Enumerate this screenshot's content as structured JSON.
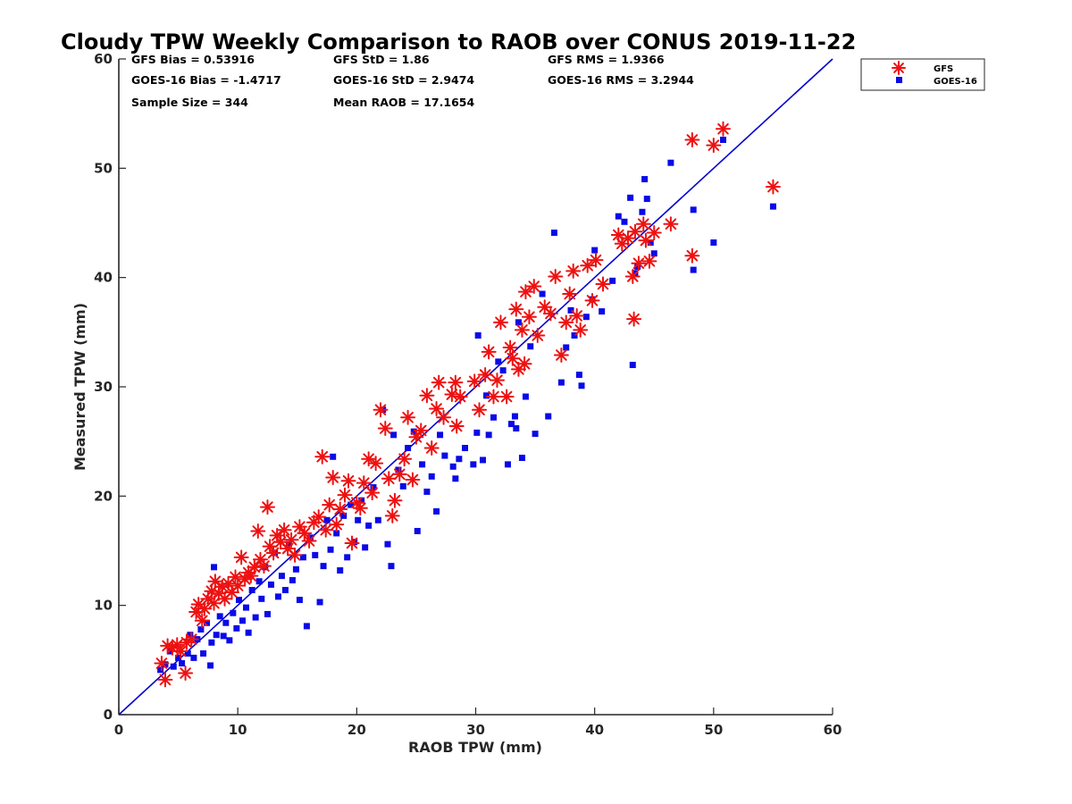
{
  "chart_data": {
    "type": "scatter",
    "title": "Cloudy TPW Weekly Comparison to RAOB over CONUS 2019-11-22",
    "xlabel": "RAOB TPW (mm)",
    "ylabel": "Measured TPW (mm)",
    "xlim": [
      0,
      60
    ],
    "ylim": [
      0,
      60
    ],
    "xticks": [
      "0",
      "10",
      "20",
      "30",
      "40",
      "50",
      "60"
    ],
    "yticks": [
      "0",
      "10",
      "20",
      "30",
      "40",
      "50",
      "60"
    ],
    "grid": false,
    "legend_position": "top-right (outside axes)",
    "reference_line": {
      "type": "one-to-one",
      "color": "#0000d0"
    },
    "stats": [
      "GFS Bias = 0.53916",
      "GFS StD = 1.86",
      "GFS RMS = 1.9366",
      "GOES-16 Bias = -1.4717",
      "GOES-16 StD = 2.9474",
      "GOES-16 RMS = 3.2944",
      "Sample Size = 344",
      "Mean RAOB = 17.1654"
    ],
    "series": [
      {
        "name": "GFS",
        "marker": "asterisk",
        "color": "#ee1111",
        "points": [
          [
            3.6,
            4.7
          ],
          [
            3.9,
            3.2
          ],
          [
            4.1,
            6.3
          ],
          [
            4.5,
            6.1
          ],
          [
            4.9,
            6.4
          ],
          [
            5.2,
            5.8
          ],
          [
            5.6,
            3.8
          ],
          [
            5.7,
            6.6
          ],
          [
            6.1,
            6.9
          ],
          [
            6.5,
            9.4
          ],
          [
            6.7,
            10.1
          ],
          [
            7.0,
            8.6
          ],
          [
            7.2,
            9.7
          ],
          [
            7.5,
            10.6
          ],
          [
            7.8,
            11.3
          ],
          [
            8.0,
            10.2
          ],
          [
            8.1,
            12.2
          ],
          [
            8.4,
            11.1
          ],
          [
            8.7,
            11.7
          ],
          [
            8.9,
            10.6
          ],
          [
            9.2,
            12.0
          ],
          [
            9.5,
            11.2
          ],
          [
            9.8,
            12.6
          ],
          [
            10.0,
            11.8
          ],
          [
            10.3,
            14.4
          ],
          [
            10.6,
            12.4
          ],
          [
            10.9,
            13.0
          ],
          [
            11.1,
            12.7
          ],
          [
            11.4,
            13.5
          ],
          [
            11.7,
            16.8
          ],
          [
            11.9,
            14.2
          ],
          [
            12.2,
            13.6
          ],
          [
            12.5,
            19.0
          ],
          [
            12.7,
            15.4
          ],
          [
            13.0,
            14.8
          ],
          [
            13.3,
            16.4
          ],
          [
            13.6,
            15.8
          ],
          [
            13.9,
            16.9
          ],
          [
            14.2,
            15.2
          ],
          [
            14.5,
            16.0
          ],
          [
            14.8,
            14.6
          ],
          [
            15.2,
            17.2
          ],
          [
            15.6,
            16.6
          ],
          [
            16.0,
            15.9
          ],
          [
            16.4,
            17.6
          ],
          [
            16.8,
            18.1
          ],
          [
            17.1,
            23.6
          ],
          [
            17.4,
            16.9
          ],
          [
            17.7,
            19.2
          ],
          [
            18.0,
            21.7
          ],
          [
            18.3,
            17.4
          ],
          [
            18.6,
            18.8
          ],
          [
            19.0,
            20.1
          ],
          [
            19.3,
            21.4
          ],
          [
            19.6,
            15.7
          ],
          [
            20.0,
            19.4
          ],
          [
            20.3,
            18.9
          ],
          [
            20.6,
            21.2
          ],
          [
            21.0,
            23.4
          ],
          [
            21.3,
            20.3
          ],
          [
            21.6,
            23.0
          ],
          [
            22.0,
            27.9
          ],
          [
            22.4,
            26.2
          ],
          [
            22.7,
            21.6
          ],
          [
            23.0,
            18.2
          ],
          [
            23.2,
            19.6
          ],
          [
            23.6,
            22.0
          ],
          [
            24.0,
            23.4
          ],
          [
            24.3,
            27.2
          ],
          [
            24.7,
            21.5
          ],
          [
            25.0,
            25.4
          ],
          [
            25.4,
            26.0
          ],
          [
            25.9,
            29.2
          ],
          [
            26.3,
            24.4
          ],
          [
            26.7,
            28.0
          ],
          [
            26.9,
            30.4
          ],
          [
            27.3,
            27.2
          ],
          [
            28.0,
            29.3
          ],
          [
            28.3,
            30.4
          ],
          [
            28.4,
            26.4
          ],
          [
            28.7,
            29.1
          ],
          [
            29.9,
            30.5
          ],
          [
            30.3,
            27.9
          ],
          [
            30.8,
            31.1
          ],
          [
            31.1,
            33.2
          ],
          [
            31.5,
            29.1
          ],
          [
            31.8,
            30.6
          ],
          [
            32.1,
            35.9
          ],
          [
            32.6,
            29.1
          ],
          [
            32.9,
            33.6
          ],
          [
            33.1,
            32.6
          ],
          [
            33.4,
            37.1
          ],
          [
            33.6,
            31.6
          ],
          [
            33.9,
            35.2
          ],
          [
            34.1,
            32.1
          ],
          [
            34.2,
            38.7
          ],
          [
            34.5,
            36.4
          ],
          [
            34.9,
            39.2
          ],
          [
            35.2,
            34.7
          ],
          [
            35.8,
            37.3
          ],
          [
            36.3,
            36.7
          ],
          [
            36.7,
            40.1
          ],
          [
            37.2,
            32.9
          ],
          [
            37.6,
            35.9
          ],
          [
            37.9,
            38.5
          ],
          [
            38.2,
            40.6
          ],
          [
            38.5,
            36.5
          ],
          [
            38.8,
            35.2
          ],
          [
            39.4,
            41.1
          ],
          [
            39.8,
            37.9
          ],
          [
            40.1,
            41.6
          ],
          [
            40.7,
            39.4
          ],
          [
            42.0,
            43.9
          ],
          [
            42.3,
            43.1
          ],
          [
            42.8,
            43.6
          ],
          [
            43.2,
            40.1
          ],
          [
            43.3,
            36.2
          ],
          [
            43.4,
            44.2
          ],
          [
            43.7,
            41.3
          ],
          [
            44.1,
            44.9
          ],
          [
            44.3,
            43.4
          ],
          [
            44.6,
            41.5
          ],
          [
            45.0,
            44.1
          ],
          [
            46.4,
            44.9
          ],
          [
            48.2,
            42.0
          ],
          [
            48.2,
            52.6
          ],
          [
            50.0,
            52.1
          ],
          [
            50.8,
            53.6
          ],
          [
            55.0,
            48.3
          ]
        ]
      },
      {
        "name": "GOES-16",
        "marker": "square",
        "color": "#0a0ae8",
        "points": [
          [
            3.5,
            4.1
          ],
          [
            3.9,
            4.6
          ],
          [
            4.3,
            5.8
          ],
          [
            4.6,
            4.4
          ],
          [
            5.0,
            5.2
          ],
          [
            5.3,
            4.7
          ],
          [
            5.8,
            5.6
          ],
          [
            6.0,
            7.3
          ],
          [
            6.3,
            5.2
          ],
          [
            6.6,
            6.9
          ],
          [
            6.9,
            7.8
          ],
          [
            7.1,
            5.6
          ],
          [
            7.4,
            8.4
          ],
          [
            7.7,
            4.5
          ],
          [
            7.8,
            6.6
          ],
          [
            8.0,
            13.5
          ],
          [
            8.2,
            7.3
          ],
          [
            8.5,
            9.0
          ],
          [
            8.8,
            7.2
          ],
          [
            9.0,
            8.4
          ],
          [
            9.3,
            6.8
          ],
          [
            9.6,
            9.3
          ],
          [
            9.9,
            7.9
          ],
          [
            10.1,
            10.5
          ],
          [
            10.4,
            8.6
          ],
          [
            10.7,
            9.8
          ],
          [
            10.9,
            7.5
          ],
          [
            11.2,
            11.4
          ],
          [
            11.5,
            8.9
          ],
          [
            11.8,
            12.2
          ],
          [
            12.0,
            10.6
          ],
          [
            12.3,
            13.5
          ],
          [
            12.5,
            9.2
          ],
          [
            12.8,
            11.9
          ],
          [
            13.1,
            14.8
          ],
          [
            13.4,
            10.8
          ],
          [
            13.7,
            12.7
          ],
          [
            14.0,
            11.4
          ],
          [
            14.3,
            15.6
          ],
          [
            14.6,
            12.3
          ],
          [
            14.9,
            13.3
          ],
          [
            15.2,
            10.5
          ],
          [
            15.5,
            14.4
          ],
          [
            15.8,
            8.1
          ],
          [
            16.1,
            16.2
          ],
          [
            16.5,
            14.6
          ],
          [
            16.9,
            10.3
          ],
          [
            17.2,
            13.6
          ],
          [
            17.5,
            17.8
          ],
          [
            17.8,
            15.1
          ],
          [
            18.0,
            23.6
          ],
          [
            18.3,
            16.6
          ],
          [
            18.6,
            13.2
          ],
          [
            18.9,
            18.2
          ],
          [
            19.2,
            14.4
          ],
          [
            19.5,
            19.2
          ],
          [
            19.8,
            15.8
          ],
          [
            20.1,
            17.8
          ],
          [
            20.4,
            19.6
          ],
          [
            20.7,
            15.3
          ],
          [
            21.0,
            17.3
          ],
          [
            21.4,
            20.8
          ],
          [
            21.8,
            17.8
          ],
          [
            22.2,
            27.9
          ],
          [
            22.6,
            15.6
          ],
          [
            22.9,
            13.6
          ],
          [
            23.1,
            25.6
          ],
          [
            23.5,
            22.4
          ],
          [
            23.9,
            20.9
          ],
          [
            24.3,
            24.4
          ],
          [
            24.8,
            25.9
          ],
          [
            25.1,
            16.8
          ],
          [
            25.5,
            22.9
          ],
          [
            25.9,
            20.4
          ],
          [
            26.3,
            21.8
          ],
          [
            26.7,
            18.6
          ],
          [
            27.0,
            25.6
          ],
          [
            27.4,
            23.7
          ],
          [
            28.1,
            22.7
          ],
          [
            28.3,
            21.6
          ],
          [
            28.6,
            23.4
          ],
          [
            29.1,
            24.4
          ],
          [
            29.8,
            22.9
          ],
          [
            30.1,
            25.8
          ],
          [
            30.2,
            34.7
          ],
          [
            30.6,
            23.3
          ],
          [
            30.9,
            29.2
          ],
          [
            31.1,
            25.6
          ],
          [
            31.5,
            27.2
          ],
          [
            31.9,
            32.3
          ],
          [
            32.3,
            31.5
          ],
          [
            32.7,
            22.9
          ],
          [
            33.0,
            26.6
          ],
          [
            33.3,
            27.3
          ],
          [
            33.4,
            26.2
          ],
          [
            33.6,
            35.9
          ],
          [
            33.9,
            23.5
          ],
          [
            34.2,
            29.1
          ],
          [
            34.6,
            33.7
          ],
          [
            35.0,
            25.7
          ],
          [
            35.6,
            38.5
          ],
          [
            36.1,
            27.3
          ],
          [
            36.6,
            44.1
          ],
          [
            37.2,
            30.4
          ],
          [
            37.6,
            33.6
          ],
          [
            38.0,
            37.0
          ],
          [
            38.3,
            34.7
          ],
          [
            38.7,
            31.1
          ],
          [
            38.9,
            30.1
          ],
          [
            39.3,
            36.4
          ],
          [
            39.8,
            38.0
          ],
          [
            40.0,
            42.5
          ],
          [
            40.6,
            36.9
          ],
          [
            41.5,
            39.7
          ],
          [
            42.0,
            45.6
          ],
          [
            42.5,
            45.1
          ],
          [
            43.0,
            47.3
          ],
          [
            43.2,
            32.0
          ],
          [
            43.4,
            40.4
          ],
          [
            43.6,
            41.0
          ],
          [
            44.0,
            46.0
          ],
          [
            44.2,
            49.0
          ],
          [
            44.4,
            47.2
          ],
          [
            44.7,
            43.2
          ],
          [
            45.0,
            42.2
          ],
          [
            46.4,
            50.5
          ],
          [
            48.3,
            40.7
          ],
          [
            48.3,
            46.2
          ],
          [
            50.0,
            43.2
          ],
          [
            50.8,
            52.6
          ],
          [
            55.0,
            46.5
          ]
        ]
      }
    ]
  }
}
